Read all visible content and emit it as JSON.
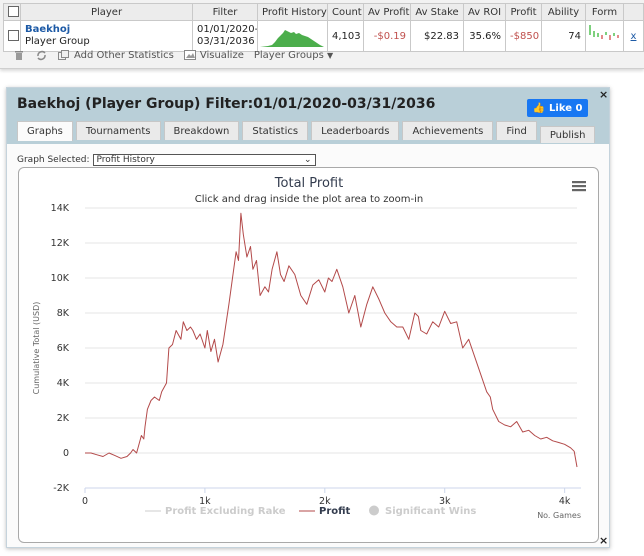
{
  "table": {
    "headers": [
      "Player",
      "Filter",
      "Profit History",
      "Count",
      "Av Profit",
      "Av Stake",
      "Av ROI",
      "Profit",
      "Ability",
      "Form"
    ],
    "row": {
      "player_name": "Baekhoj",
      "player_type": "Player Group",
      "filter_from": "01/01/2020-",
      "filter_to": "03/31/2036",
      "count": "4,103",
      "av_profit": "-$0.19",
      "av_stake": "$22.83",
      "av_roi": "35.6%",
      "profit": "-$850",
      "ability": "74",
      "remove": "x"
    }
  },
  "toolbar": {
    "add_other_statistics": "Add Other Statistics",
    "visualize": "Visualize",
    "player_groups": "Player Groups"
  },
  "panel": {
    "title": "Baekhoj (Player Group) Filter:01/01/2020-03/31/2036",
    "like_label": "Like 0",
    "close": "×",
    "tabs": [
      "Graphs",
      "Tournaments",
      "Breakdown",
      "Statistics",
      "Leaderboards",
      "Achievements",
      "Find",
      "Publish"
    ],
    "graph_selected_label": "Graph Selected:",
    "graph_selected_value": "Profit History"
  },
  "colors": {
    "header_bg": "#b9cfd8",
    "profit_line": "#b34a4a",
    "like_button": "#1877f2",
    "sparkline": "#4cae4c",
    "form_positive": "#7ed17e",
    "form_negative": "#e38a8a"
  },
  "chart_data": {
    "type": "line",
    "title": "Total Profit",
    "subtitle": "Click and drag inside the plot area to zoom-in",
    "xlabel": "No. Games",
    "ylabel": "Cumulative Total (USD)",
    "xlim": [
      0,
      4103
    ],
    "ylim": [
      -2000,
      14000
    ],
    "x_ticks": [
      0,
      1000,
      2000,
      3000,
      4000
    ],
    "x_tick_labels": [
      "0",
      "1k",
      "2k",
      "3k",
      "4k"
    ],
    "y_ticks": [
      -2000,
      0,
      2000,
      4000,
      6000,
      8000,
      10000,
      12000,
      14000
    ],
    "y_tick_labels": [
      "-2K",
      "0",
      "2K",
      "4K",
      "6K",
      "8K",
      "10K",
      "12K",
      "14K"
    ],
    "grid": "horizontal",
    "legend_position": "bottom",
    "legend": [
      {
        "name": "Profit Excluding Rake",
        "active": false
      },
      {
        "name": "Profit",
        "active": true
      },
      {
        "name": "Significant Wins",
        "active": false
      }
    ],
    "series": [
      {
        "name": "Profit",
        "x": [
          0,
          50,
          100,
          150,
          200,
          250,
          300,
          350,
          380,
          400,
          430,
          450,
          470,
          490,
          500,
          520,
          550,
          580,
          620,
          640,
          680,
          700,
          730,
          760,
          800,
          820,
          850,
          880,
          900,
          930,
          960,
          1000,
          1020,
          1050,
          1080,
          1110,
          1150,
          1200,
          1230,
          1260,
          1280,
          1300,
          1320,
          1350,
          1380,
          1400,
          1430,
          1460,
          1500,
          1530,
          1560,
          1600,
          1630,
          1660,
          1700,
          1750,
          1800,
          1850,
          1900,
          1950,
          2000,
          2030,
          2060,
          2100,
          2150,
          2200,
          2250,
          2300,
          2350,
          2400,
          2450,
          2500,
          2550,
          2600,
          2650,
          2700,
          2750,
          2780,
          2800,
          2850,
          2900,
          2950,
          3000,
          3050,
          3100,
          3150,
          3200,
          3250,
          3300,
          3350,
          3380,
          3400,
          3450,
          3500,
          3550,
          3600,
          3650,
          3700,
          3750,
          3800,
          3850,
          3900,
          3950,
          4000,
          4050,
          4080,
          4103
        ],
        "y": [
          0,
          0,
          -100,
          -200,
          0,
          -150,
          -300,
          -200,
          0,
          200,
          0,
          500,
          1000,
          800,
          1500,
          2500,
          3000,
          3200,
          3000,
          3500,
          4000,
          6000,
          6200,
          7000,
          6500,
          7500,
          7000,
          7200,
          7000,
          6500,
          6800,
          6000,
          7000,
          5800,
          6500,
          5200,
          6200,
          8500,
          10000,
          11500,
          11000,
          13700,
          12500,
          11200,
          11800,
          10500,
          11000,
          9000,
          9500,
          9200,
          10500,
          11500,
          10200,
          9800,
          10700,
          10200,
          9000,
          8500,
          9600,
          9900,
          9200,
          10000,
          9800,
          10500,
          9500,
          8000,
          9000,
          7200,
          8500,
          9500,
          8800,
          8000,
          7500,
          7200,
          7200,
          6500,
          8000,
          7800,
          7000,
          6800,
          7500,
          7200,
          8100,
          7400,
          7500,
          6000,
          6500,
          5500,
          4500,
          3500,
          3200,
          2500,
          1800,
          1600,
          1500,
          1800,
          1200,
          1300,
          1000,
          800,
          900,
          700,
          600,
          500,
          300,
          100,
          -800
        ]
      }
    ]
  }
}
